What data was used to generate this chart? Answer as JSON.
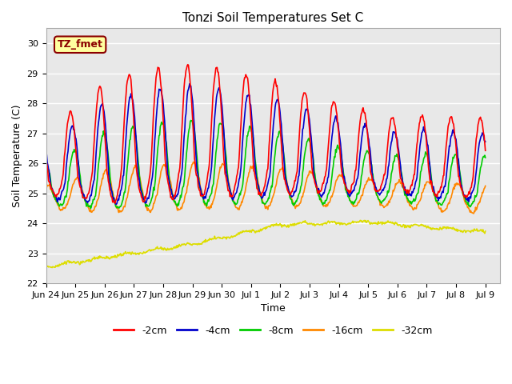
{
  "title": "Tonzi Soil Temperatures Set C",
  "xlabel": "Time",
  "ylabel": "Soil Temperature (C)",
  "ylim": [
    22.0,
    30.5
  ],
  "annotation": "TZ_fmet",
  "annotation_color": "#8B0000",
  "annotation_bg": "#FFFFA0",
  "bg_color": "#E8E8E8",
  "grid_color": "#FFFFFF",
  "tick_labels": [
    "Jun 24",
    "Jun 25",
    "Jun 26",
    "Jun 27",
    "Jun 28",
    "Jun 29",
    "Jun 30",
    "Jul 1",
    "Jul 2",
    "Jul 3",
    "Jul 4",
    "Jul 5",
    "Jul 6",
    "Jul 7",
    "Jul 8",
    "Jul 9"
  ],
  "legend_labels": [
    "-2cm",
    "-4cm",
    "-8cm",
    "-16cm",
    "-32cm"
  ],
  "legend_colors": [
    "#FF0000",
    "#0000CC",
    "#00CC00",
    "#FF8800",
    "#DDDD00"
  ],
  "line_width": 1.2
}
